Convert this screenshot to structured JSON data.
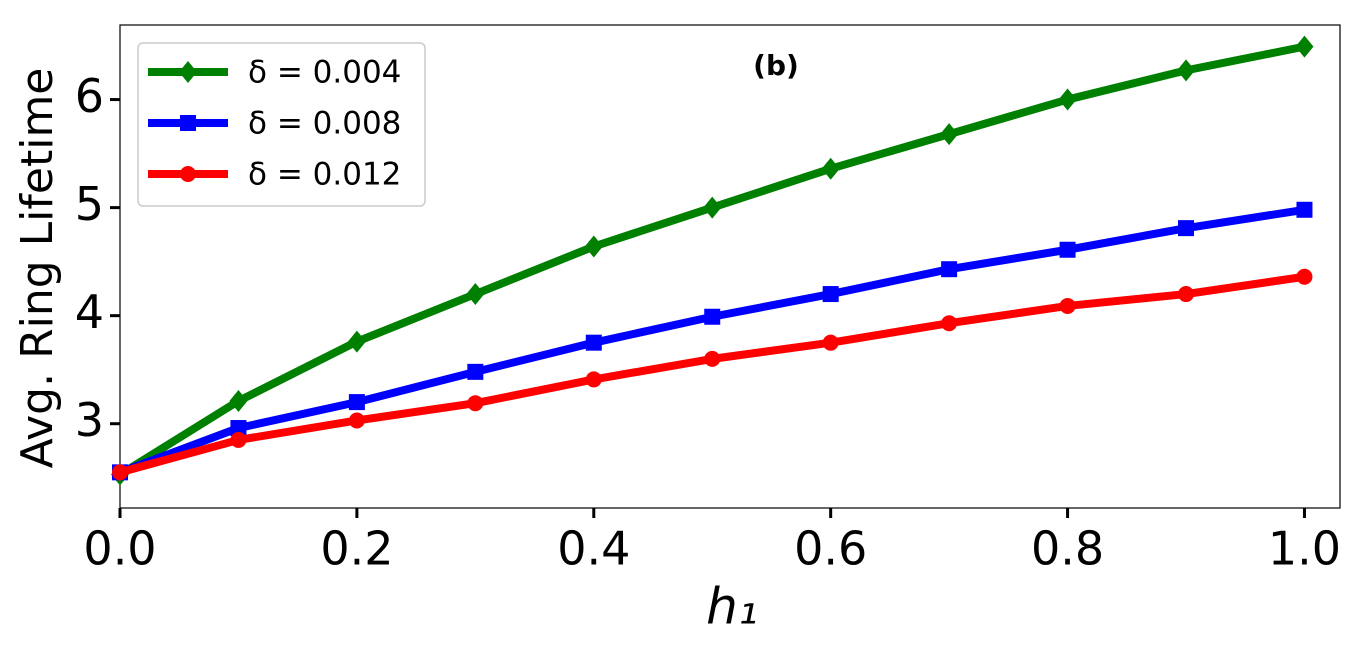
{
  "chart_data": {
    "type": "line",
    "annotation": "(b)",
    "x_label": "h₁",
    "y_label": "Avg. Ring Lifetime",
    "x": [
      0.0,
      0.1,
      0.2,
      0.3,
      0.4,
      0.5,
      0.6,
      0.7,
      0.8,
      0.9,
      1.0
    ],
    "series": [
      {
        "name": "δ = 0.004",
        "color": "#008000",
        "marker": "diamond",
        "values": [
          2.53,
          3.21,
          3.76,
          4.2,
          4.64,
          5.0,
          5.36,
          5.68,
          6.0,
          6.27,
          6.49
        ]
      },
      {
        "name": "δ = 0.008",
        "color": "#0000ff",
        "marker": "square",
        "values": [
          2.55,
          2.96,
          3.2,
          3.48,
          3.75,
          3.99,
          4.2,
          4.43,
          4.61,
          4.81,
          4.98
        ]
      },
      {
        "name": "δ = 0.012",
        "color": "#ff0000",
        "marker": "circle",
        "values": [
          2.55,
          2.85,
          3.03,
          3.19,
          3.41,
          3.6,
          3.75,
          3.93,
          4.09,
          4.2,
          4.36
        ]
      }
    ],
    "xlim": [
      0,
      1.03
    ],
    "ylim": [
      2.22,
      6.69
    ],
    "xticks": [
      {
        "value": 0,
        "label": "0.0"
      },
      0.2,
      0.4,
      0.6,
      0.8,
      {
        "value": 1,
        "label": "1.0"
      }
    ],
    "yticks": [
      3,
      4,
      5,
      6
    ],
    "legend": "upper left",
    "grid": false
  }
}
